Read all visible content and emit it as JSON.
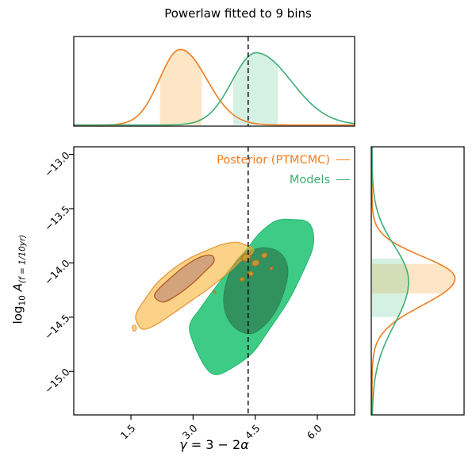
{
  "figure": {
    "title": "Powerlaw fitted to 9 bins"
  },
  "legend": {
    "items": [
      {
        "label": "Posterior (PTMCMC)",
        "color": "#ef7d21"
      },
      {
        "label": "Models",
        "color": "#3fae74"
      }
    ]
  },
  "axes": {
    "x": {
      "label_gamma": "γ",
      "label_mid": " = 3 − 2",
      "label_alpha": "α",
      "ticks": [
        {
          "value": 1.5,
          "label": "1.5"
        },
        {
          "value": 3.0,
          "label": "3.0"
        },
        {
          "value": 4.5,
          "label": "4.5"
        },
        {
          "value": 6.0,
          "label": "6.0"
        }
      ]
    },
    "y": {
      "label_log": "log",
      "label_sub10": "10",
      "label_A": "A",
      "label_subscript": "(f = 1/10yr)",
      "ticks": [
        {
          "value": -13.0,
          "label": "−13.0"
        },
        {
          "value": -13.5,
          "label": "−13.5"
        },
        {
          "value": -14.0,
          "label": "−14.0"
        },
        {
          "value": -14.5,
          "label": "−14.5"
        },
        {
          "value": -15.0,
          "label": "−15.0"
        }
      ]
    }
  },
  "chart_data": {
    "type": "2d_kde_contours_with_marginal_densities",
    "title": "Powerlaw fitted to 9 bins",
    "xlabel": "γ = 3 − 2α",
    "ylabel": "log10 A(f = 1/10yr)",
    "x_range": [
      0.12,
      6.9
    ],
    "y_range": [
      -15.4,
      -12.93
    ],
    "x_ticks": [
      1.5,
      3.0,
      4.5,
      6.0
    ],
    "y_ticks": [
      -13.0,
      -13.5,
      -14.0,
      -14.5,
      -15.0
    ],
    "grid": false,
    "legend_position": "upper right inside main panel, labels left of line markers",
    "reference_line": {
      "axis": "x",
      "value": 4.33,
      "style": "dashed",
      "color": "#000000"
    },
    "series": [
      {
        "name": "Models",
        "line_color": "#3fae74",
        "contour_outer_fill": "#3ecb86",
        "contour_outer_line": "#25b873",
        "contour_inner_fill": "#31925f",
        "contour_inner_line": "#2b8456",
        "band_fill": "rgba(62,190,128,0.22)",
        "contour_outer": [
          [
            2.92,
            -14.57
          ],
          [
            3.0,
            -14.73
          ],
          [
            3.28,
            -14.95
          ],
          [
            3.55,
            -15.03
          ],
          [
            3.93,
            -14.97
          ],
          [
            4.43,
            -14.83
          ],
          [
            4.81,
            -14.63
          ],
          [
            5.33,
            -14.33
          ],
          [
            5.75,
            -14.0
          ],
          [
            5.9,
            -13.84
          ],
          [
            5.89,
            -13.7
          ],
          [
            5.75,
            -13.62
          ],
          [
            5.43,
            -13.6
          ],
          [
            5.01,
            -13.61
          ],
          [
            4.62,
            -13.72
          ],
          [
            4.32,
            -13.86
          ],
          [
            3.93,
            -14.04
          ],
          [
            3.55,
            -14.22
          ],
          [
            3.19,
            -14.41
          ]
        ],
        "contour_inner": [
          [
            3.74,
            -14.3
          ],
          [
            3.8,
            -14.48
          ],
          [
            4.05,
            -14.61
          ],
          [
            4.43,
            -14.65
          ],
          [
            4.81,
            -14.54
          ],
          [
            5.08,
            -14.38
          ],
          [
            5.27,
            -14.16
          ],
          [
            5.27,
            -14.01
          ],
          [
            5.08,
            -13.9
          ],
          [
            4.76,
            -13.86
          ],
          [
            4.43,
            -13.88
          ],
          [
            4.14,
            -13.94
          ],
          [
            3.89,
            -14.08
          ]
        ],
        "marginal_top": {
          "peak_x": 4.52,
          "sigma_left": 0.58,
          "sigma_right": 0.85,
          "peak_height": 0.85,
          "credible_interval": [
            3.97,
            5.05
          ]
        },
        "marginal_right": {
          "peak_y": -14.17,
          "sigma_up": 0.33,
          "sigma_down": 0.4,
          "peak_height": 0.4,
          "credible_interval": [
            -14.5,
            -13.96
          ]
        }
      },
      {
        "name": "Posterior (PTMCMC)",
        "line_color": "#ef7d21",
        "contour_outer_fill": "#f8ad24",
        "contour_outer_fill_opacity": 0.55,
        "contour_outer_line": "#e8973a",
        "contour_inner_fill": "#d3a37e",
        "contour_inner_line": "#b25c20",
        "band_fill": "rgba(248,166,50,0.28)",
        "contour_outer": [
          [
            1.62,
            -14.52
          ],
          [
            1.78,
            -14.61
          ],
          [
            2.1,
            -14.57
          ],
          [
            2.5,
            -14.47
          ],
          [
            2.95,
            -14.35
          ],
          [
            3.4,
            -14.23
          ],
          [
            3.85,
            -14.09
          ],
          [
            4.18,
            -13.97
          ],
          [
            4.4,
            -13.92
          ],
          [
            4.46,
            -13.87
          ],
          [
            4.3,
            -13.84
          ],
          [
            4.05,
            -13.81
          ],
          [
            3.7,
            -13.83
          ],
          [
            3.3,
            -13.89
          ],
          [
            2.9,
            -13.96
          ],
          [
            2.5,
            -14.06
          ],
          [
            2.12,
            -14.19
          ],
          [
            1.83,
            -14.34
          ],
          [
            1.66,
            -14.44
          ]
        ],
        "contour_inner": [
          [
            2.07,
            -14.31
          ],
          [
            2.28,
            -14.36
          ],
          [
            2.6,
            -14.3
          ],
          [
            2.95,
            -14.2
          ],
          [
            3.28,
            -14.08
          ],
          [
            3.5,
            -13.99
          ],
          [
            3.44,
            -13.93
          ],
          [
            3.15,
            -13.95
          ],
          [
            2.8,
            -14.03
          ],
          [
            2.45,
            -14.14
          ],
          [
            2.17,
            -14.24
          ]
        ],
        "scatter_blobs": [
          {
            "x": 4.28,
            "y": -13.95,
            "rx": 0.11,
            "ry": 0.032
          },
          {
            "x": 4.51,
            "y": -14.0,
            "rx": 0.09,
            "ry": 0.026
          },
          {
            "x": 4.72,
            "y": -13.93,
            "rx": 0.07,
            "ry": 0.022
          },
          {
            "x": 4.39,
            "y": -14.1,
            "rx": 0.06,
            "ry": 0.019
          },
          {
            "x": 4.18,
            "y": -14.15,
            "rx": 0.05,
            "ry": 0.015
          },
          {
            "x": 4.89,
            "y": -14.05,
            "rx": 0.03,
            "ry": 0.012
          },
          {
            "x": 3.52,
            "y": -14.27,
            "rx": 0.025,
            "ry": 0.012
          }
        ],
        "tail_blob": {
          "x": 1.58,
          "y": -14.6,
          "rx": 0.05,
          "ry": 0.028
        },
        "marginal_top": {
          "peak_x": 2.69,
          "sigma_left": 0.5,
          "sigma_right": 0.64,
          "peak_height": 0.89,
          "credible_interval": [
            2.2,
            3.21
          ]
        },
        "marginal_right": {
          "peak_y": -14.14,
          "sigma_up": 0.2,
          "sigma_down": 0.25,
          "peak_height": 0.91,
          "credible_interval": [
            -14.28,
            -14.01
          ]
        }
      }
    ]
  }
}
